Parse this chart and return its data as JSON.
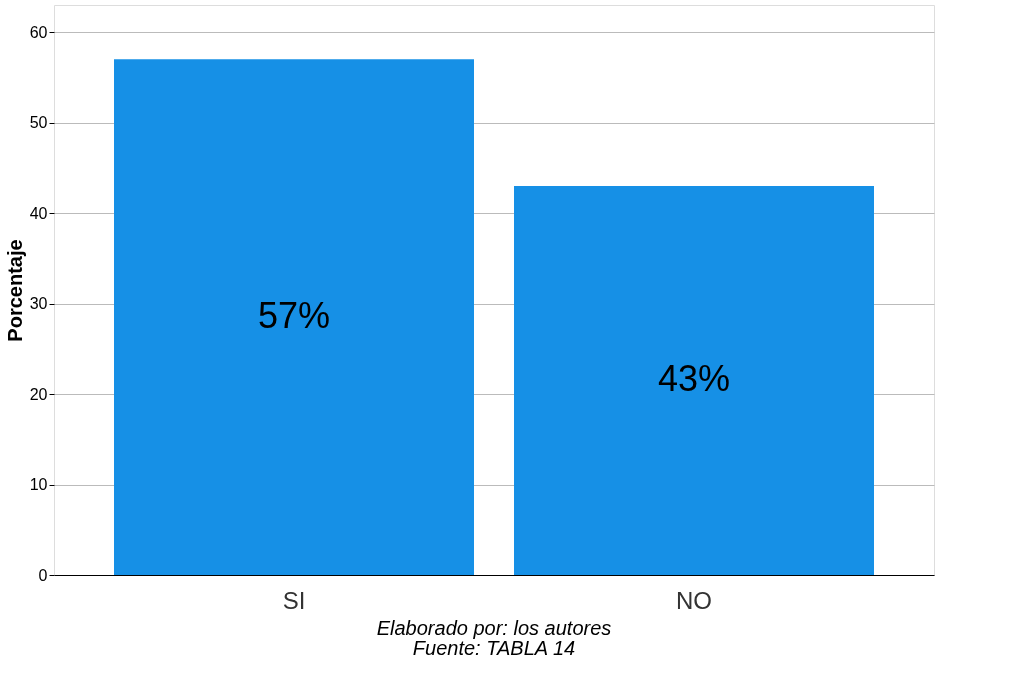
{
  "chart_data": {
    "type": "bar",
    "ylabel": "Porcentaje",
    "categories": [
      "SI",
      "NO"
    ],
    "values": [
      57,
      43
    ],
    "value_labels": [
      "57%",
      "43%"
    ],
    "color": "#1690e6",
    "ylim": [
      0,
      63
    ],
    "yticks": [
      0,
      10,
      20,
      30,
      40,
      50,
      60
    ],
    "grid": "y",
    "annotations": [
      "Elaborado por: los autores",
      "Fuente: TABLA 14"
    ]
  }
}
